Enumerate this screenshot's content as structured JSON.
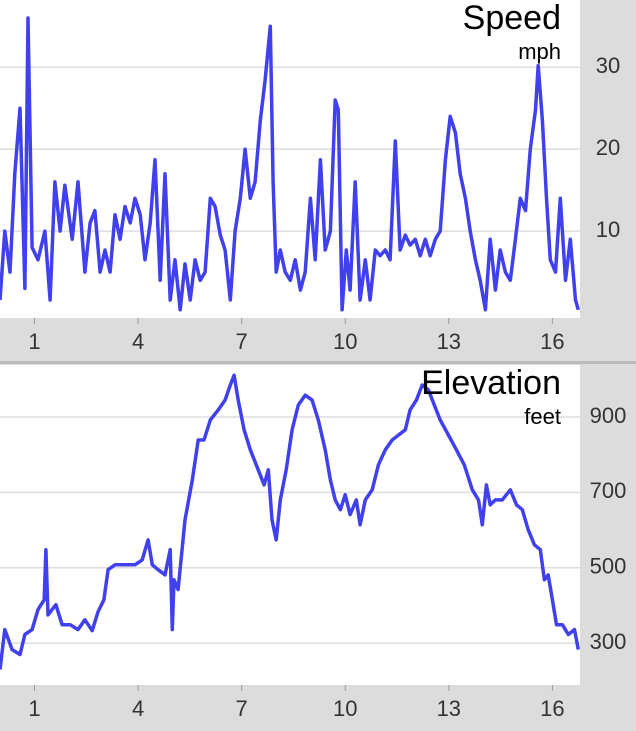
{
  "chart_data": [
    {
      "type": "line",
      "title": "Speed",
      "subtitle": "mph",
      "color": "#4040ee",
      "xlim": [
        0,
        16.8
      ],
      "xticks": [
        1,
        4,
        7,
        10,
        13,
        16
      ],
      "ylim": [
        -0.6,
        38.2
      ],
      "yticks": [
        10,
        20,
        30
      ],
      "grid": true,
      "x": [
        0,
        0.14,
        0.29,
        0.43,
        0.58,
        0.72,
        0.81,
        0.93,
        1.1,
        1.3,
        1.45,
        1.59,
        1.74,
        1.88,
        2.09,
        2.26,
        2.46,
        2.61,
        2.75,
        2.9,
        3.04,
        3.19,
        3.33,
        3.48,
        3.62,
        3.77,
        3.91,
        4.06,
        4.2,
        4.35,
        4.49,
        4.64,
        4.78,
        4.93,
        5.07,
        5.22,
        5.36,
        5.51,
        5.65,
        5.8,
        5.94,
        6.09,
        6.23,
        6.38,
        6.52,
        6.67,
        6.81,
        6.96,
        7.1,
        7.25,
        7.39,
        7.54,
        7.68,
        7.83,
        7.91,
        8.0,
        8.12,
        8.26,
        8.41,
        8.55,
        8.7,
        8.84,
        8.99,
        9.13,
        9.28,
        9.42,
        9.57,
        9.71,
        9.8,
        9.91,
        10.03,
        10.14,
        10.29,
        10.43,
        10.58,
        10.72,
        10.87,
        11.01,
        11.16,
        11.3,
        11.45,
        11.59,
        11.74,
        11.88,
        12.03,
        12.17,
        12.32,
        12.46,
        12.61,
        12.75,
        12.9,
        13.04,
        13.19,
        13.33,
        13.48,
        13.62,
        13.77,
        13.91,
        14.06,
        14.2,
        14.35,
        14.49,
        14.64,
        14.78,
        14.93,
        15.07,
        15.22,
        15.36,
        15.51,
        15.59,
        15.71,
        15.83,
        15.94,
        16.09,
        16.23,
        16.38,
        16.52,
        16.67,
        16.75
      ],
      "values": [
        1.6,
        10,
        5,
        17,
        25,
        3,
        36,
        8,
        6.5,
        10,
        1.6,
        16,
        10,
        15.6,
        9,
        16,
        5,
        11,
        12.5,
        5,
        7.7,
        5,
        12,
        9,
        13,
        11,
        14,
        12,
        6.5,
        11,
        18.7,
        4,
        17,
        1.6,
        6.5,
        0.4,
        6,
        1.6,
        6.5,
        4,
        5,
        14,
        13,
        9.5,
        7.7,
        1.6,
        10,
        14,
        20,
        14,
        16,
        23.5,
        28.4,
        35,
        16,
        5,
        7.7,
        5,
        4,
        6.5,
        2.8,
        5,
        14,
        6.5,
        18.7,
        7.7,
        10,
        26,
        24.8,
        0.4,
        7.7,
        2.8,
        16,
        1.6,
        6.5,
        1.6,
        7.7,
        7,
        7.7,
        6.5,
        21,
        7.7,
        9.5,
        8.3,
        9,
        7,
        9,
        7,
        9,
        10,
        18.7,
        24,
        22,
        17,
        14,
        10,
        6.5,
        4,
        0.4,
        9,
        2.8,
        7.7,
        5,
        4,
        9,
        14,
        12.5,
        20,
        24.8,
        30.2,
        23.5,
        14,
        6.5,
        5,
        14,
        4,
        9,
        1.6,
        0.4
      ]
    },
    {
      "type": "line",
      "title": "Elevation",
      "subtitle": "feet",
      "color": "#4040ee",
      "xlim": [
        0,
        16.8
      ],
      "xticks": [
        1,
        4,
        7,
        10,
        13,
        16
      ],
      "ylim": [
        189,
        1038
      ],
      "yticks": [
        300,
        500,
        700,
        900
      ],
      "grid": true,
      "x": [
        0,
        0.14,
        0.35,
        0.58,
        0.72,
        0.93,
        1.1,
        1.28,
        1.33,
        1.39,
        1.51,
        1.62,
        1.8,
        2.03,
        2.26,
        2.46,
        2.67,
        2.84,
        3.01,
        3.13,
        3.33,
        3.62,
        3.91,
        4.12,
        4.29,
        4.41,
        4.58,
        4.78,
        4.93,
        4.99,
        5.04,
        5.16,
        5.36,
        5.57,
        5.74,
        5.91,
        6.09,
        6.32,
        6.52,
        6.67,
        6.78,
        6.9,
        7.07,
        7.25,
        7.48,
        7.65,
        7.77,
        7.88,
        8.0,
        8.12,
        8.29,
        8.46,
        8.64,
        8.84,
        9.04,
        9.22,
        9.42,
        9.57,
        9.71,
        9.86,
        10.0,
        10.14,
        10.32,
        10.43,
        10.58,
        10.78,
        10.96,
        11.16,
        11.36,
        11.54,
        11.74,
        11.88,
        12.06,
        12.23,
        12.41,
        12.58,
        12.75,
        12.99,
        13.22,
        13.45,
        13.68,
        13.86,
        13.97,
        14.09,
        14.2,
        14.35,
        14.55,
        14.78,
        14.96,
        15.13,
        15.3,
        15.48,
        15.65,
        15.77,
        15.88,
        16.0,
        16.12,
        16.29,
        16.46,
        16.64,
        16.75
      ],
      "values": [
        230,
        336,
        283,
        270,
        323,
        336,
        389,
        415,
        548,
        375,
        389,
        402,
        349,
        349,
        336,
        362,
        333,
        383,
        415,
        495,
        508,
        508,
        508,
        521,
        574,
        508,
        495,
        481,
        548,
        336,
        468,
        442,
        627,
        733,
        839,
        839,
        892,
        919,
        945,
        985,
        1011,
        945,
        866,
        813,
        760,
        720,
        760,
        627,
        574,
        680,
        760,
        866,
        932,
        958,
        945,
        892,
        813,
        733,
        680,
        654,
        694,
        641,
        680,
        614,
        680,
        707,
        773,
        813,
        839,
        852,
        866,
        919,
        945,
        985,
        972,
        932,
        892,
        852,
        813,
        773,
        707,
        680,
        614,
        720,
        667,
        680,
        680,
        707,
        667,
        654,
        601,
        561,
        548,
        468,
        481,
        415,
        349,
        349,
        323,
        336,
        283
      ]
    }
  ]
}
